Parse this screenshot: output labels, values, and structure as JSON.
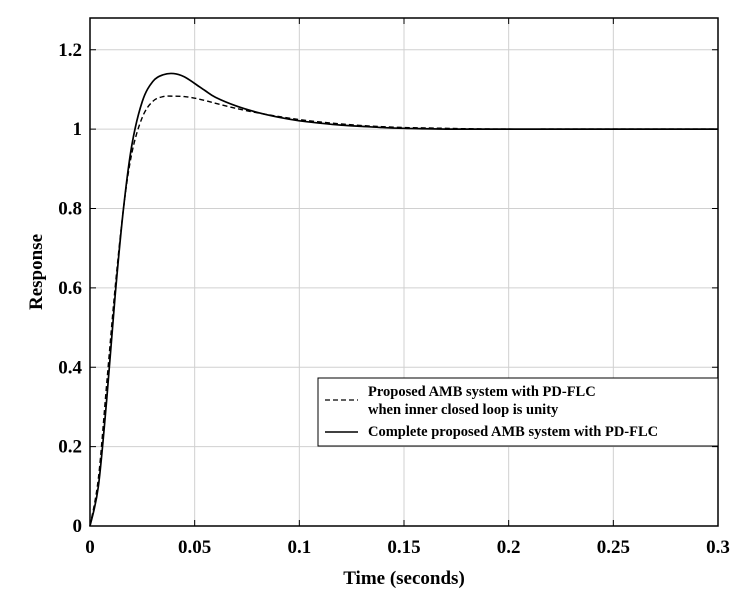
{
  "chart_data": {
    "type": "line",
    "title": "",
    "xlabel": "Time (seconds)",
    "ylabel": "Response",
    "xlim": [
      0,
      0.3
    ],
    "ylim": [
      0,
      1.28
    ],
    "xticks": [
      0,
      0.05,
      0.1,
      0.15,
      0.2,
      0.25,
      0.3
    ],
    "xtick_labels": [
      "0",
      "0.05",
      "0.1",
      "0.15",
      "0.2",
      "0.25",
      "0.3"
    ],
    "yticks": [
      0,
      0.2,
      0.4,
      0.6,
      0.8,
      1.0,
      1.2
    ],
    "ytick_labels": [
      "0",
      "0.2",
      "0.4",
      "0.6",
      "0.8",
      "1",
      "1.2"
    ],
    "grid": true,
    "legend_position": "lower-right",
    "series": [
      {
        "name": "Proposed AMB system with PD-FLC",
        "name_line2": "when inner closed loop is unity",
        "line_style": "dashed",
        "color": "#000000",
        "x": [
          0,
          0.004,
          0.008,
          0.012,
          0.016,
          0.02,
          0.025,
          0.03,
          0.035,
          0.04,
          0.045,
          0.05,
          0.055,
          0.06,
          0.07,
          0.08,
          0.09,
          0.1,
          0.11,
          0.12,
          0.13,
          0.14,
          0.15,
          0.16,
          0.17,
          0.18,
          0.2,
          0.22,
          0.25,
          0.3
        ],
        "y": [
          0,
          0.12,
          0.36,
          0.6,
          0.8,
          0.94,
          1.03,
          1.07,
          1.082,
          1.083,
          1.082,
          1.078,
          1.072,
          1.065,
          1.052,
          1.041,
          1.032,
          1.024,
          1.018,
          1.013,
          1.009,
          1.006,
          1.004,
          1.003,
          1.002,
          1.001,
          1.0,
          1.0,
          1.0,
          1.0
        ]
      },
      {
        "name": "Complete proposed AMB system with PD-FLC",
        "line_style": "solid",
        "color": "#000000",
        "x": [
          0,
          0.004,
          0.008,
          0.012,
          0.016,
          0.02,
          0.025,
          0.03,
          0.035,
          0.04,
          0.045,
          0.05,
          0.055,
          0.06,
          0.07,
          0.08,
          0.09,
          0.1,
          0.11,
          0.12,
          0.13,
          0.14,
          0.15,
          0.16,
          0.17,
          0.18,
          0.2,
          0.22,
          0.25,
          0.3
        ],
        "y": [
          0,
          0.1,
          0.32,
          0.58,
          0.8,
          0.96,
          1.07,
          1.12,
          1.137,
          1.14,
          1.132,
          1.115,
          1.097,
          1.08,
          1.058,
          1.042,
          1.03,
          1.021,
          1.015,
          1.01,
          1.007,
          1.004,
          1.002,
          1.001,
          1.0,
          1.0,
          1.0,
          1.0,
          1.0,
          1.0
        ]
      }
    ]
  }
}
